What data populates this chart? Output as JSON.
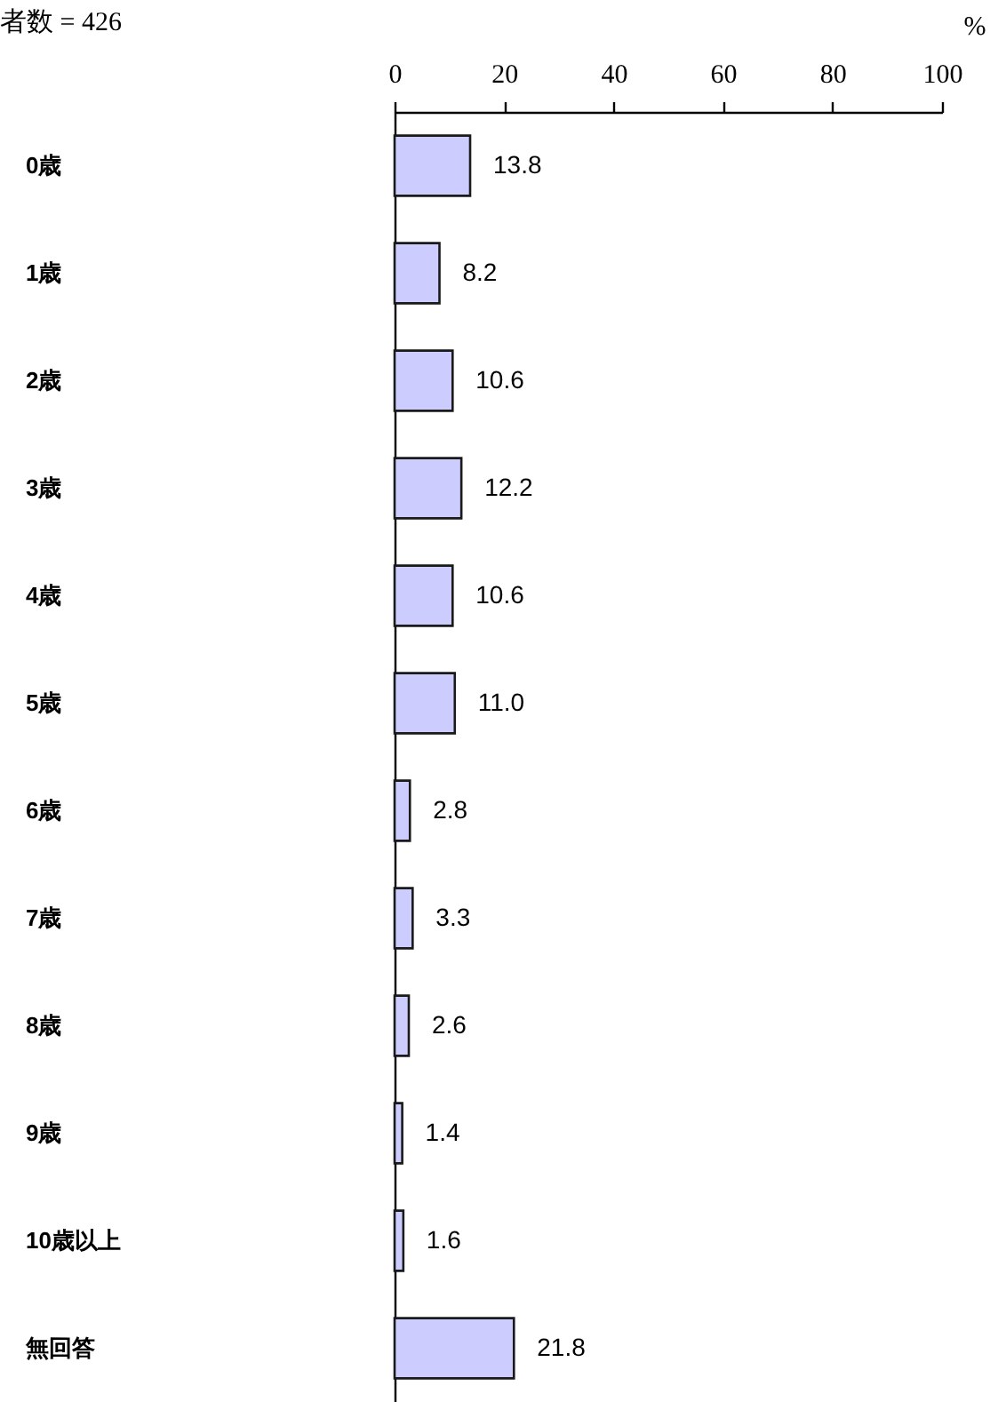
{
  "chart_data": {
    "type": "bar",
    "orientation": "horizontal",
    "title": "者数 = 426",
    "x2label": "%",
    "categories": [
      "0歳",
      "1歳",
      "2歳",
      "3歳",
      "4歳",
      "5歳",
      "6歳",
      "7歳",
      "8歳",
      "9歳",
      "10歳以上",
      "無回答"
    ],
    "values": [
      13.8,
      8.2,
      10.6,
      12.2,
      10.6,
      11.0,
      2.8,
      3.3,
      2.6,
      1.4,
      1.6,
      21.8
    ],
    "value_labels": [
      "13.8",
      "8.2",
      "10.6",
      "12.2",
      "10.6",
      "11.0",
      "2.8",
      "3.3",
      "2.6",
      "1.4",
      "1.6",
      "21.8"
    ],
    "color": "#ccccff",
    "x2lim": [
      0,
      100
    ],
    "x2ticks": [
      0,
      20,
      40,
      60,
      80,
      100
    ]
  }
}
